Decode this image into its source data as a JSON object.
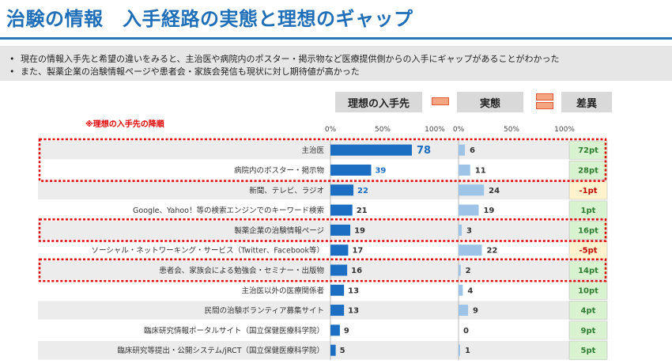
{
  "title": "治験の情報　入手経路の実態と理想のギャップ",
  "bullets": [
    "現在の情報入手先と希望の違いをみると、主治医や病院内のポスター・掲示物など医療提供側からの入手にギャップがあることがわかった",
    "また、製薬企業の治験情報ページや患者会・家族会発信も現状に対し期待値が高かった"
  ],
  "bullet_symbol": "•",
  "headers": {
    "ideal": "理想の入手先",
    "actual": "実態",
    "gap": "差異"
  },
  "note": "※理想の入手先の降順",
  "colors": {
    "ideal": "#1b6ec2",
    "actual": "#9dc3e6",
    "accent": "#1f6fb8",
    "highlight": "#e00000",
    "gap_pos_bg": "#d9f2d0",
    "gap_neg_bg": "#fff2cc",
    "gap_pos_text": "#2e7d32",
    "gap_neg_text": "#c00000"
  },
  "chart_data": {
    "type": "bar",
    "title": "治験の情報　入手経路の実態と理想のギャップ",
    "axis_ticks": [
      "0%",
      "50%",
      "100%"
    ],
    "xlim": [
      0,
      100
    ],
    "categories": [
      "主治医",
      "病院内のポスター・掲示物",
      "新聞、テレビ、ラジオ",
      "Google、Yahoo！等の検索エンジンでのキーワード検索",
      "製薬企業の治験情報ページ",
      "ソーシャル・ネットワーキング・サービス（Twitter、Facebook等）",
      "患者会、家族会による勉強会・セミナー・出版物",
      "主治医以外の医療関係者",
      "民間の治験ボランティア募集サイト",
      "臨床研究情報ポータルサイト（国立保健医療科学院）",
      "臨床研究等提出・公開システム/jRCT（国立保健医療科学院）"
    ],
    "series": [
      {
        "name": "理想の入手先",
        "values": [
          78,
          39,
          22,
          21,
          19,
          17,
          16,
          13,
          13,
          9,
          5
        ]
      },
      {
        "name": "実態",
        "values": [
          6,
          11,
          24,
          19,
          3,
          22,
          2,
          4,
          9,
          0,
          1
        ]
      }
    ],
    "gap": [
      "72pt",
      "28pt",
      "-1pt",
      "1pt",
      "16pt",
      "-5pt",
      "14pt",
      "10pt",
      "4pt",
      "9pt",
      "5pt"
    ],
    "highlighted_rows": [
      [
        0,
        1
      ],
      [
        4,
        4
      ],
      [
        6,
        6
      ]
    ]
  }
}
